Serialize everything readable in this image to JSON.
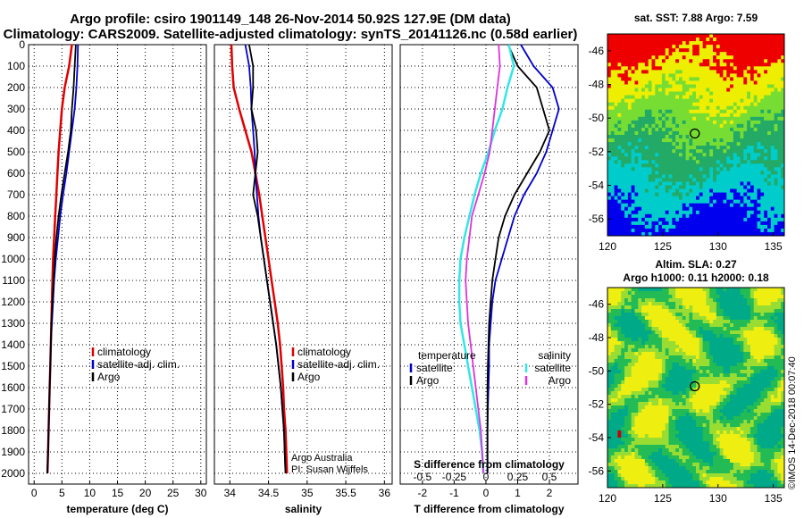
{
  "title_line1": "Argo profile: csiro 1901149_148 26-Nov-2014 50.92S 127.9E (DM data)",
  "title_line2": "Climatology: CARS2009. Satellite-adjusted climatology: synTS_20141126.nc (0.58d earlier)",
  "colors": {
    "climatology": "#e00000",
    "satellite": "#0000cc",
    "argo": "#000000",
    "salinity_sat": "#33e6e6",
    "salinity_argo": "#dd33dd"
  },
  "depth_axis": {
    "range": [
      0,
      2050
    ],
    "ticks": [
      0,
      100,
      200,
      300,
      400,
      500,
      600,
      700,
      800,
      900,
      1000,
      1100,
      1200,
      1300,
      1400,
      1500,
      1600,
      1700,
      1800,
      1900,
      2000
    ]
  },
  "chart_data": [
    {
      "type": "line",
      "xlabel": "temperature (deg C)",
      "xlim": [
        -1,
        31
      ],
      "ylim": [
        2050,
        0
      ],
      "xticks": [
        0,
        5,
        10,
        15,
        20,
        25,
        30
      ],
      "legend": {
        "placement": "bottom-right",
        "entries": [
          "climatology",
          "satellite-adj. clim.",
          "Argo"
        ]
      },
      "series": [
        {
          "name": "climatology",
          "depth": [
            0,
            100,
            200,
            300,
            400,
            500,
            600,
            700,
            800,
            900,
            1000,
            1100,
            1200,
            1300,
            1400,
            1500,
            1600,
            1700,
            1800,
            1900,
            2000
          ],
          "values": [
            6.8,
            6.3,
            5.5,
            5.0,
            4.7,
            4.4,
            4.2,
            4.0,
            3.8,
            3.6,
            3.4,
            3.3,
            3.2,
            3.1,
            3.0,
            2.9,
            2.8,
            2.7,
            2.6,
            2.5,
            2.4
          ]
        },
        {
          "name": "satellite-adj. clim.",
          "depth": [
            0,
            100,
            200,
            300,
            400,
            500,
            600,
            700,
            800,
            900,
            1000,
            1100,
            1200,
            1300,
            1400,
            1500,
            1600,
            1700,
            1800,
            1900,
            2000
          ],
          "values": [
            7.9,
            7.8,
            7.6,
            7.3,
            6.8,
            6.3,
            5.8,
            5.2,
            4.7,
            4.3,
            3.9,
            3.6,
            3.4,
            3.2,
            3.0,
            2.9,
            2.8,
            2.7,
            2.6,
            2.5,
            2.4
          ]
        },
        {
          "name": "Argo",
          "depth": [
            0,
            100,
            200,
            300,
            400,
            500,
            600,
            700,
            800,
            900,
            1000,
            1100,
            1200,
            1300,
            1400,
            1500,
            1600,
            1700,
            1800,
            1900,
            2000
          ],
          "values": [
            7.5,
            7.3,
            7.1,
            6.8,
            6.6,
            6.1,
            5.5,
            4.9,
            4.4,
            4.0,
            3.7,
            3.5,
            3.3,
            3.1,
            3.0,
            2.9,
            2.8,
            2.7,
            2.6,
            2.5,
            2.4
          ]
        }
      ]
    },
    {
      "type": "line",
      "xlabel": "salinity",
      "xlim": [
        33.8,
        36.1
      ],
      "ylim": [
        2050,
        0
      ],
      "xticks": [
        34,
        34.5,
        35,
        35.5,
        36
      ],
      "legend": {
        "placement": "bottom-right",
        "entries": [
          "climatology",
          "satellite-adj. clim.",
          "Argo"
        ]
      },
      "annotation": [
        "Argo Australia",
        "PI: Susan Wijffels"
      ],
      "series": [
        {
          "name": "climatology",
          "depth": [
            0,
            100,
            200,
            300,
            400,
            500,
            600,
            700,
            800,
            900,
            1000,
            1100,
            1200,
            1300,
            1400,
            1500,
            1600,
            1700,
            1800,
            1900,
            2000
          ],
          "values": [
            34.02,
            34.03,
            34.05,
            34.12,
            34.2,
            34.28,
            34.33,
            34.38,
            34.42,
            34.46,
            34.5,
            34.54,
            34.58,
            34.62,
            34.65,
            34.67,
            34.69,
            34.7,
            34.72,
            34.73,
            34.74
          ]
        },
        {
          "name": "satellite-adj. clim.",
          "depth": [
            0,
            100,
            200,
            300,
            400,
            500,
            600,
            700,
            800,
            900,
            1000,
            1100,
            1200,
            1300,
            1400,
            1500,
            1600,
            1700,
            1800,
            1900,
            2000
          ],
          "values": [
            34.2,
            34.25,
            34.27,
            34.28,
            34.3,
            34.32,
            34.33,
            34.35,
            34.37,
            34.4,
            34.44,
            34.48,
            34.52,
            34.56,
            34.6,
            34.63,
            34.66,
            34.68,
            34.7,
            34.71,
            34.72
          ]
        },
        {
          "name": "Argo",
          "depth": [
            0,
            100,
            200,
            300,
            400,
            500,
            600,
            700,
            800,
            900,
            1000,
            1100,
            1200,
            1300,
            1400,
            1500,
            1600,
            1700,
            1800,
            1900,
            2000
          ],
          "values": [
            34.25,
            34.3,
            34.3,
            34.28,
            34.34,
            34.36,
            34.33,
            34.3,
            34.36,
            34.4,
            34.44,
            34.48,
            34.52,
            34.56,
            34.6,
            34.63,
            34.66,
            34.68,
            34.7,
            34.71,
            34.72
          ]
        }
      ]
    },
    {
      "type": "line",
      "xlabel": "T difference from climatology",
      "secondary_xlabel": "S difference from climatology",
      "xlim": [
        -2.7,
        2.9
      ],
      "ylim": [
        2050,
        0
      ],
      "xticks": [
        -2,
        -1,
        0,
        1,
        2
      ],
      "secondary_xticks": [
        "-0.5",
        "-0.25",
        "0",
        "0.25",
        "0.5"
      ],
      "legend": {
        "placement": "bottom",
        "groups": [
          {
            "title": "temperature",
            "entries": [
              "satellite",
              "Argo"
            ]
          },
          {
            "title": "salinity",
            "entries": [
              "satellite",
              "Argo"
            ]
          }
        ]
      },
      "series": [
        {
          "name": "temperature satellite",
          "depth": [
            0,
            100,
            200,
            300,
            400,
            500,
            600,
            700,
            800,
            900,
            1000,
            1100,
            1200,
            1300,
            1400,
            1500,
            1600,
            1700,
            1800,
            1900,
            2000
          ],
          "values": [
            1.1,
            1.5,
            2.1,
            2.3,
            2.1,
            1.9,
            1.6,
            1.2,
            0.9,
            0.7,
            0.5,
            0.3,
            0.2,
            0.15,
            0.1,
            0.1,
            0.08,
            0.06,
            0.05,
            0.05,
            0.05
          ]
        },
        {
          "name": "temperature Argo",
          "depth": [
            0,
            100,
            200,
            300,
            400,
            500,
            600,
            700,
            800,
            900,
            1000,
            1100,
            1200,
            1300,
            1400,
            1500,
            1600,
            1700,
            1800,
            1900,
            2000
          ],
          "values": [
            0.7,
            1.0,
            1.6,
            1.8,
            2.0,
            1.7,
            1.3,
            0.9,
            0.6,
            0.4,
            0.3,
            0.2,
            0.15,
            0.1,
            0.08,
            0.06,
            0.05,
            0.05,
            0.05,
            0.05,
            0.05
          ]
        },
        {
          "name": "salinity satellite",
          "depth": [
            0,
            100,
            200,
            300,
            400,
            500,
            600,
            700,
            800,
            900,
            1000,
            1100,
            1200,
            1300,
            1400,
            1500,
            1600,
            1700,
            1800,
            1900,
            2000
          ],
          "values": [
            0.18,
            0.22,
            0.17,
            0.13,
            0.07,
            0.02,
            -0.04,
            -0.09,
            -0.13,
            -0.17,
            -0.2,
            -0.21,
            -0.21,
            -0.2,
            -0.17,
            -0.14,
            -0.11,
            -0.08,
            -0.05,
            -0.03,
            -0.02
          ]
        },
        {
          "name": "salinity Argo",
          "depth": [
            0,
            100,
            200,
            300,
            400,
            500,
            600,
            700,
            800,
            900,
            1000,
            1100,
            1200,
            1300,
            1400,
            1500,
            1600,
            1700,
            1800,
            1900,
            2000
          ],
          "values": [
            0.1,
            0.11,
            0.09,
            0.07,
            0.05,
            0.03,
            -0.01,
            -0.06,
            -0.11,
            -0.13,
            -0.15,
            -0.16,
            -0.15,
            -0.14,
            -0.12,
            -0.1,
            -0.08,
            -0.06,
            -0.04,
            -0.03,
            -0.02
          ]
        }
      ]
    },
    {
      "type": "heatmap",
      "title": "sat. SST: 7.88 Argo: 7.59",
      "xlim": [
        120,
        136
      ],
      "ylim": [
        -57,
        -45
      ],
      "xticks": [
        120,
        125,
        130,
        135
      ],
      "yticks": [
        -46,
        -48,
        -50,
        -52,
        -54,
        -56
      ],
      "palette": [
        "#0000ee",
        "#00cccc",
        "#22aa66",
        "#77dd33",
        "#eeee00",
        "#ee0000"
      ],
      "profile_location": {
        "lon": 127.9,
        "lat": -50.92
      }
    },
    {
      "type": "heatmap",
      "title": "Altim. SLA: 0.27",
      "subtitle": "Argo h1000: 0.11 h2000: 0.18",
      "xlim": [
        120,
        136
      ],
      "ylim": [
        -57,
        -45
      ],
      "xticks": [
        120,
        125,
        130,
        135
      ],
      "yticks": [
        -46,
        -48,
        -50,
        -52,
        -54,
        -56
      ],
      "palette": [
        "#cc0000",
        "#00aa88",
        "#22bb55",
        "#99dd33",
        "#eeee11"
      ],
      "profile_location": {
        "lon": 127.9,
        "lat": -50.92
      }
    }
  ],
  "side_note": "©IMOS 14-Dec-2018 00:07:40"
}
